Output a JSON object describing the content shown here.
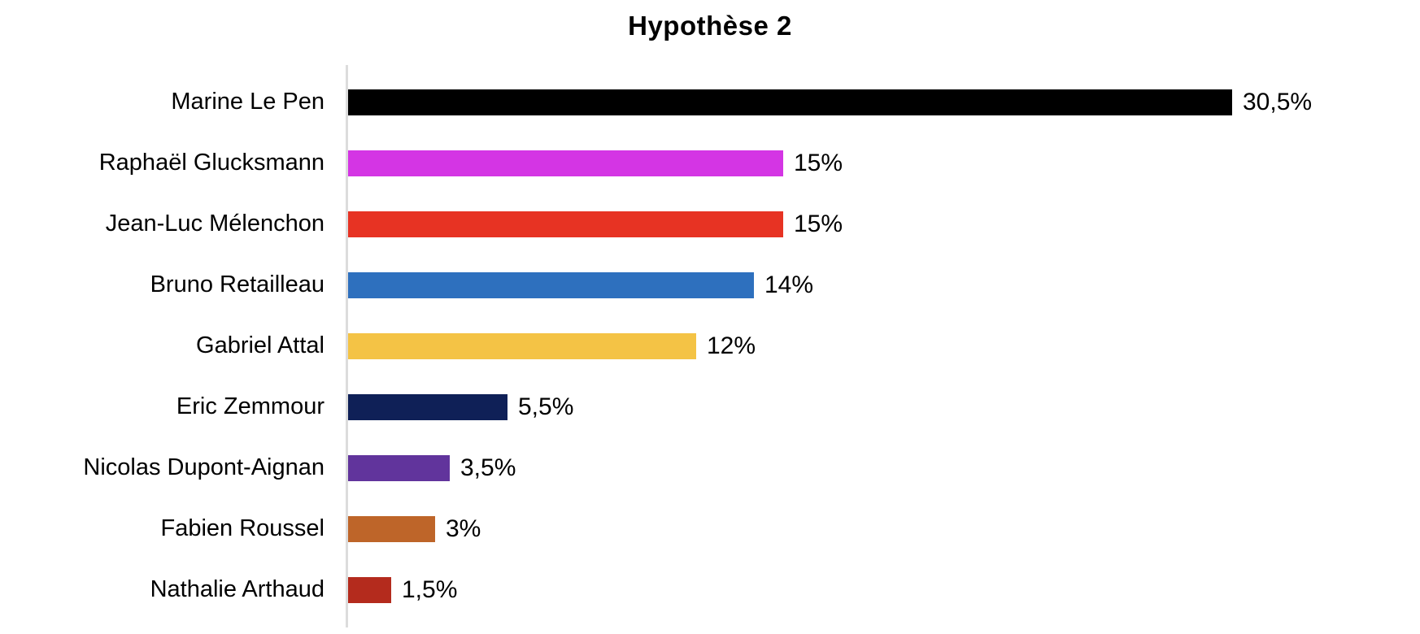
{
  "title": "Hypothèse 2",
  "chart_data": {
    "type": "bar",
    "orientation": "horizontal",
    "title": "Hypothèse 2",
    "xlabel": "",
    "ylabel": "",
    "grid": false,
    "legend": false,
    "xlim": [
      0,
      37
    ],
    "value_unit": "%",
    "categories": [
      "Marine Le Pen",
      "Raphaël Glucksmann",
      "Jean-Luc Mélenchon",
      "Bruno Retailleau",
      "Gabriel Attal",
      "Eric Zemmour",
      "Nicolas Dupont-Aignan",
      "Fabien Roussel",
      "Nathalie Arthaud"
    ],
    "values": [
      30.5,
      15,
      15,
      14,
      12,
      5.5,
      3.5,
      3,
      1.5
    ],
    "value_labels": [
      "30,5%",
      "15%",
      "15%",
      "14%",
      "12%",
      "5,5%",
      "3,5%",
      "3%",
      "1,5%"
    ],
    "bar_colors": [
      "#000000",
      "#D435E4",
      "#E73323",
      "#2E70BE",
      "#F4C345",
      "#0F2057",
      "#61349C",
      "#BE6529",
      "#B42B1D"
    ],
    "axis_line_color": "#DCDCDC",
    "background_color": "#FFFFFF",
    "text_color": "#000000"
  }
}
